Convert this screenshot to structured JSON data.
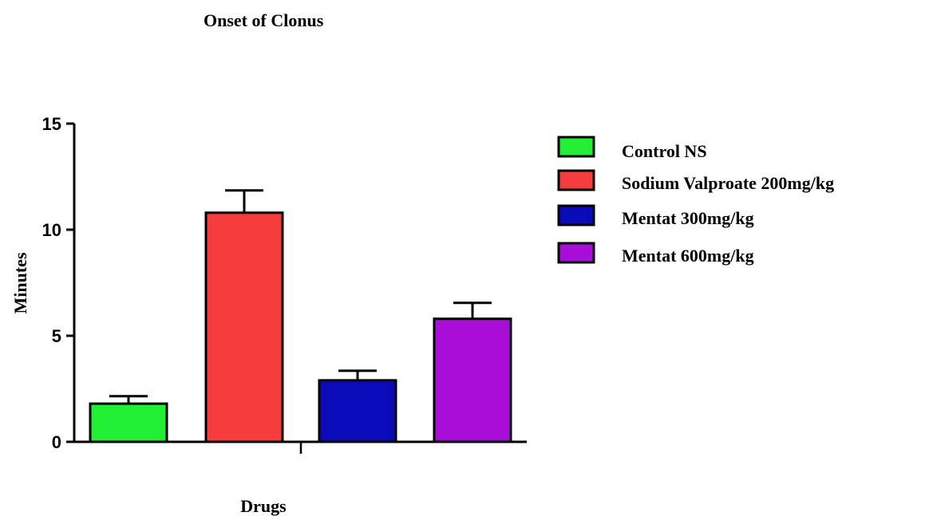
{
  "chart_data": {
    "type": "bar",
    "title": "Onset of Clonus",
    "xlabel": "Drugs",
    "ylabel": "Minutes",
    "ylim": [
      0,
      15
    ],
    "yticks": [
      0,
      5,
      10,
      15
    ],
    "grid": false,
    "legend_position": "right",
    "categories": [
      "Control NS",
      "Sodium Valproate 200mg/kg",
      "Mentat 300mg/kg",
      "Mentat 600mg/kg"
    ],
    "values": [
      1.8,
      10.8,
      2.9,
      5.8
    ],
    "errors": [
      0.35,
      1.05,
      0.45,
      0.75
    ],
    "colors": [
      "#22ee33",
      "#f63c3c",
      "#0a0ab8",
      "#a80ed8"
    ]
  }
}
